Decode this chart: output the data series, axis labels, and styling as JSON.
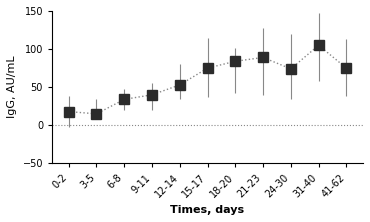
{
  "x_labels": [
    "0-2",
    "3-5",
    "6-8",
    "9-11",
    "12-14",
    "15-17",
    "18-20",
    "21-23",
    "24-30",
    "31-40",
    "41-62"
  ],
  "x_positions": [
    0,
    1,
    2,
    3,
    4,
    5,
    6,
    7,
    8,
    9,
    10
  ],
  "y_values": [
    18,
    15,
    34,
    40,
    53,
    75,
    84,
    89,
    74,
    105,
    75
  ],
  "y_err_low": [
    18,
    15,
    20,
    20,
    35,
    37,
    43,
    40,
    35,
    58,
    38
  ],
  "y_err_high": [
    18,
    35,
    47,
    55,
    80,
    115,
    102,
    128,
    120,
    147,
    113
  ],
  "ylabel": "IgG, AU/mL",
  "xlabel": "Times, days",
  "ylim": [
    -50,
    150
  ],
  "yticks": [
    -50,
    0,
    50,
    100,
    150
  ],
  "marker_color": "#2b2b2b",
  "error_color": "#888888",
  "line_color": "#888888",
  "hline_color": "#888888",
  "background_color": "#ffffff",
  "marker_size": 7,
  "line_style": "dotted"
}
